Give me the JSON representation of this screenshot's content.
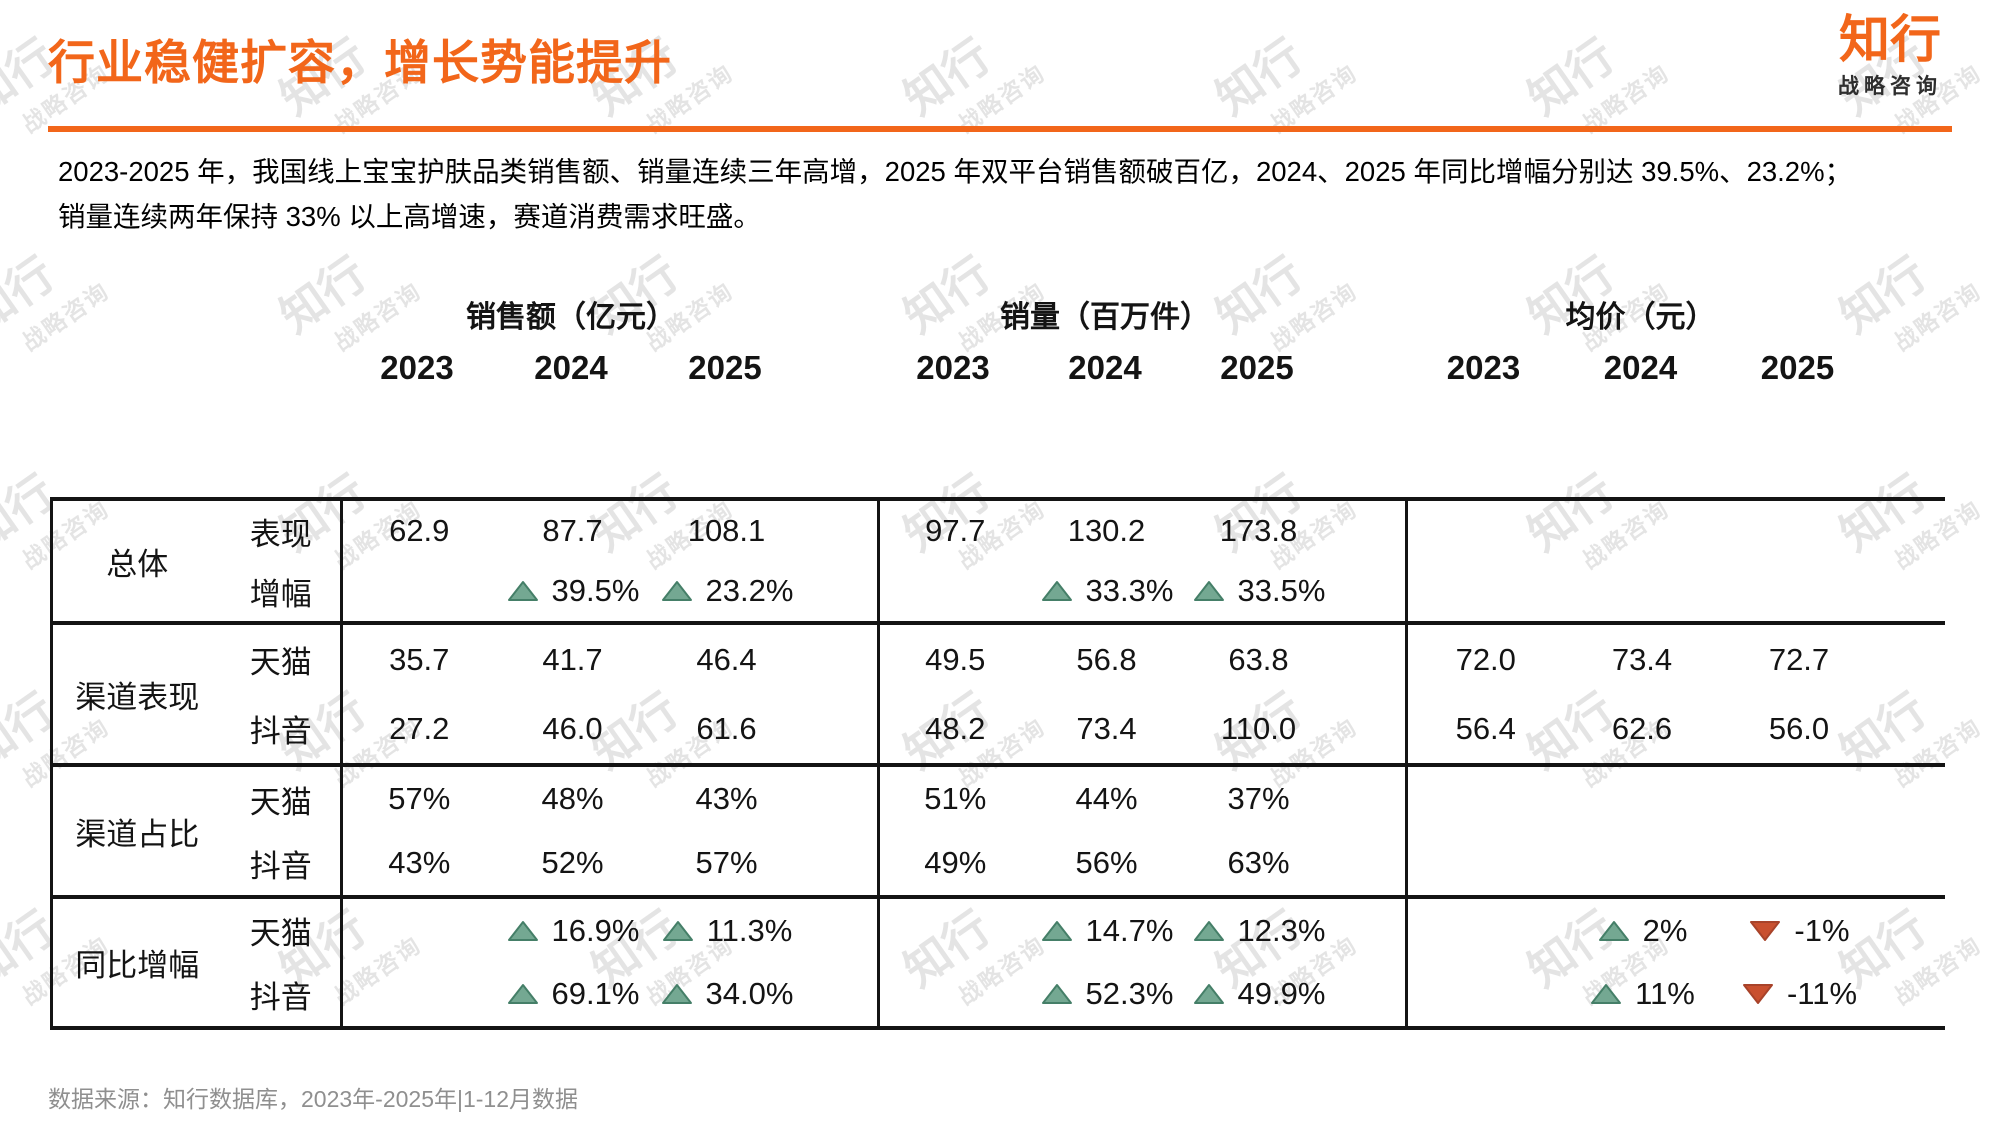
{
  "header": {
    "title": "行业稳健扩容，增长势能提升",
    "logo": {
      "name": "知行",
      "subtitle": "战略咨询"
    }
  },
  "summary": {
    "line1": "2023-2025 年，我国线上宝宝护肤品类销售额、销量连续三年高增，2025 年双平台销售额破百亿，2024、2025 年同比增幅分别达 39.5%、23.2%；",
    "line2": "销量连续两年保持 33% 以上高增速，赛道消费需求旺盛。"
  },
  "watermark": {
    "line1": "知行",
    "line2": "战略咨询"
  },
  "colors": {
    "accent": "#F2661A",
    "up": "#74A892",
    "up_border": "#457F68",
    "down": "#C9502F",
    "down_border": "#A8432A"
  },
  "table": {
    "col_groups": [
      {
        "title": "销售额（亿元）",
        "years": [
          "2023",
          "2024",
          "2025"
        ]
      },
      {
        "title": "销量（百万件）",
        "years": [
          "2023",
          "2024",
          "2025"
        ]
      },
      {
        "title": "均价（元）",
        "years": [
          "2023",
          "2024",
          "2025"
        ]
      }
    ],
    "row_groups": [
      {
        "label": "总体",
        "rows": [
          {
            "label": "表现",
            "cells": [
              {
                "v": "62.9"
              },
              {
                "v": "87.7"
              },
              {
                "v": "108.1"
              },
              {
                "v": "97.7"
              },
              {
                "v": "130.2"
              },
              {
                "v": "173.8"
              },
              null,
              null,
              null
            ]
          },
          {
            "label": "增幅",
            "cells": [
              null,
              {
                "v": "39.5%",
                "arrow": "up"
              },
              {
                "v": "23.2%",
                "arrow": "up"
              },
              null,
              {
                "v": "33.3%",
                "arrow": "up"
              },
              {
                "v": "33.5%",
                "arrow": "up"
              },
              null,
              null,
              null
            ]
          }
        ]
      },
      {
        "label": "渠道表现",
        "rows": [
          {
            "label": "天猫",
            "cells": [
              {
                "v": "35.7"
              },
              {
                "v": "41.7"
              },
              {
                "v": "46.4"
              },
              {
                "v": "49.5"
              },
              {
                "v": "56.8"
              },
              {
                "v": "63.8"
              },
              {
                "v": "72.0"
              },
              {
                "v": "73.4"
              },
              {
                "v": "72.7"
              }
            ]
          },
          {
            "label": "抖音",
            "cells": [
              {
                "v": "27.2"
              },
              {
                "v": "46.0"
              },
              {
                "v": "61.6"
              },
              {
                "v": "48.2"
              },
              {
                "v": "73.4"
              },
              {
                "v": "110.0"
              },
              {
                "v": "56.4"
              },
              {
                "v": "62.6"
              },
              {
                "v": "56.0"
              }
            ]
          }
        ]
      },
      {
        "label": "渠道占比",
        "rows": [
          {
            "label": "天猫",
            "cells": [
              {
                "v": "57%"
              },
              {
                "v": "48%"
              },
              {
                "v": "43%"
              },
              {
                "v": "51%"
              },
              {
                "v": "44%"
              },
              {
                "v": "37%"
              },
              null,
              null,
              null
            ]
          },
          {
            "label": "抖音",
            "cells": [
              {
                "v": "43%"
              },
              {
                "v": "52%"
              },
              {
                "v": "57%"
              },
              {
                "v": "49%"
              },
              {
                "v": "56%"
              },
              {
                "v": "63%"
              },
              null,
              null,
              null
            ]
          }
        ]
      },
      {
        "label": "同比增幅",
        "rows": [
          {
            "label": "天猫",
            "cells": [
              null,
              {
                "v": "16.9%",
                "arrow": "up"
              },
              {
                "v": "11.3%",
                "arrow": "up"
              },
              null,
              {
                "v": "14.7%",
                "arrow": "up"
              },
              {
                "v": "12.3%",
                "arrow": "up"
              },
              null,
              {
                "v": "2%",
                "arrow": "up"
              },
              {
                "v": "-1%",
                "arrow": "down"
              }
            ]
          },
          {
            "label": "抖音",
            "cells": [
              null,
              {
                "v": "69.1%",
                "arrow": "up"
              },
              {
                "v": "34.0%",
                "arrow": "up"
              },
              null,
              {
                "v": "52.3%",
                "arrow": "up"
              },
              {
                "v": "49.9%",
                "arrow": "up"
              },
              null,
              {
                "v": "11%",
                "arrow": "up"
              },
              {
                "v": "-11%",
                "arrow": "down"
              }
            ]
          }
        ]
      }
    ]
  },
  "footer": {
    "source": "数据来源：知行数据库，2023年-2025年|1-12月数据"
  }
}
